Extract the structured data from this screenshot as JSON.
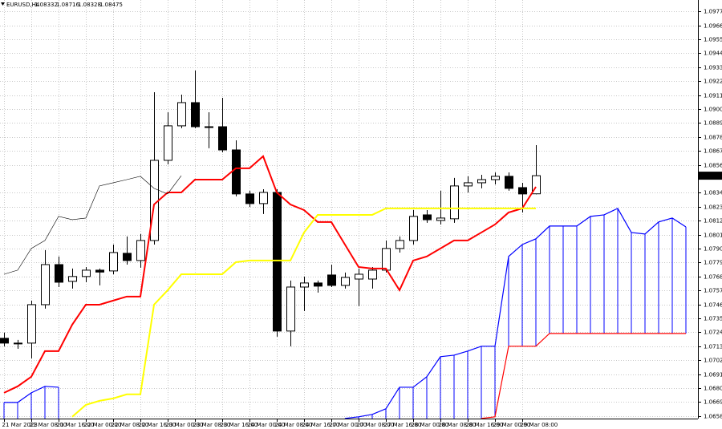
{
  "chart_data": {
    "type": "candlestick",
    "title": "EURUSD,H4",
    "categories": [
      "21 Mar 2023",
      null,
      "21 Mar 08:00",
      null,
      "21 Mar 16:00",
      null,
      "22 Mar 00:00",
      null,
      "22 Mar 08:00",
      null,
      "22 Mar 16:00",
      null,
      "23 Mar 00:00",
      null,
      "23 Mar 08:00",
      null,
      "23 Mar 16:00",
      null,
      "24 Mar 00:00",
      null,
      "24 Mar 08:00",
      null,
      "24 Mar 16:00",
      null,
      "27 Mar 00:00",
      null,
      "27 Mar 08:00",
      null,
      "27 Mar 16:00",
      null,
      "28 Mar 00:00",
      null,
      "28 Mar 08:00",
      null,
      "28 Mar 16:00",
      null,
      "29 Mar 00:00",
      null,
      "29 Mar 08:00",
      null,
      null,
      null,
      null,
      null,
      null,
      null,
      null,
      null,
      null,
      null,
      null
    ],
    "open": [
      1.07193,
      1.07155,
      1.07155,
      1.07458,
      1.07774,
      1.07642,
      1.0768,
      1.0773,
      1.07724,
      1.07863,
      1.07806,
      1.07964,
      1.08596,
      1.08868,
      1.09051,
      1.08861,
      1.08861,
      1.08678,
      1.08331,
      1.08255,
      1.08343,
      1.0725,
      1.07597,
      1.07629,
      1.07692,
      1.0761,
      1.0766,
      1.0766,
      1.0773,
      1.07901,
      1.07964,
      1.08166,
      1.08122,
      1.08135,
      1.08394,
      1.08419,
      1.08444,
      1.0847,
      1.08381,
      1.08332,
      null,
      null,
      null,
      null,
      null,
      null,
      null,
      null,
      null,
      null,
      null
    ],
    "high": [
      1.07237,
      1.0718,
      1.0749,
      1.07888,
      1.07838,
      1.07743,
      1.07755,
      1.07743,
      1.07932,
      1.07996,
      1.08015,
      1.09133,
      1.08975,
      1.09114,
      1.09304,
      1.08975,
      1.09089,
      1.08754,
      1.08356,
      1.08368,
      1.08368,
      1.07648,
      1.0768,
      1.07648,
      1.07774,
      1.07711,
      1.07743,
      1.07755,
      1.07964,
      1.07996,
      1.08204,
      1.08204,
      1.08356,
      1.08457,
      1.0847,
      1.08482,
      1.08501,
      1.08501,
      1.08419,
      1.08716,
      null,
      null,
      null,
      null,
      null,
      null,
      null,
      null,
      null,
      null,
      null
    ],
    "low": [
      1.0713,
      1.0711,
      1.07035,
      1.07427,
      1.07597,
      1.07585,
      1.07635,
      1.0761,
      1.07698,
      1.07774,
      1.07749,
      1.07932,
      1.08564,
      1.08849,
      1.08849,
      1.08691,
      1.08659,
      1.08312,
      1.08229,
      1.08173,
      1.07206,
      1.0713,
      1.07408,
      1.07553,
      1.07597,
      1.07585,
      1.07446,
      1.07585,
      1.07711,
      1.07869,
      1.07932,
      1.08103,
      1.0809,
      1.08103,
      1.08343,
      1.08375,
      1.08406,
      1.08356,
      1.08185,
      1.08328,
      null,
      null,
      null,
      null,
      null,
      null,
      null,
      null,
      null,
      null,
      null
    ],
    "close": [
      1.07155,
      1.0715,
      1.07458,
      1.07774,
      1.07635,
      1.0768,
      1.0773,
      1.07715,
      1.07869,
      1.07806,
      1.07964,
      1.08596,
      1.08868,
      1.09051,
      1.08861,
      1.08855,
      1.08678,
      1.08331,
      1.08255,
      1.08343,
      1.0725,
      1.07597,
      1.07629,
      1.07604,
      1.0761,
      1.07673,
      1.07698,
      1.0773,
      1.07901,
      1.07964,
      1.08154,
      1.08128,
      1.08141,
      1.08394,
      1.08419,
      1.08444,
      1.0847,
      1.08375,
      1.08331,
      1.08475,
      null,
      null,
      null,
      null,
      null,
      null,
      null,
      null,
      null,
      null,
      null
    ],
    "bull_color": "#ffffff",
    "bear_color": "#000000",
    "lines": [
      {
        "color": "#ff0000",
        "width": 2,
        "values": [
          1.06763,
          1.06814,
          1.0689,
          1.07092,
          1.07092,
          1.073,
          1.07458,
          1.07458,
          1.0749,
          1.07522,
          1.07522,
          1.08248,
          1.08343,
          1.08343,
          1.08444,
          1.08444,
          1.08444,
          1.08533,
          1.08533,
          1.08628,
          1.08343,
          1.08248,
          1.08204,
          1.0811,
          1.0811,
          1.07932,
          1.07755,
          1.07743,
          1.07743,
          1.07572,
          1.07806,
          1.07838,
          1.07901,
          1.07964,
          1.07964,
          1.08027,
          1.0809,
          1.08185,
          1.08217,
          1.08387,
          null,
          null,
          null,
          null,
          null,
          null,
          null,
          null,
          null,
          null,
          null
        ]
      },
      {
        "color": "#ffff00",
        "width": 2,
        "values": [
          null,
          null,
          null,
          null,
          null,
          1.06574,
          1.06668,
          1.067,
          1.06719,
          1.06751,
          1.06751,
          1.07458,
          1.07572,
          1.07698,
          1.07698,
          1.07698,
          1.07698,
          1.07793,
          1.07806,
          1.07806,
          1.07806,
          1.07806,
          1.08027,
          1.08166,
          1.08166,
          1.08166,
          1.08166,
          1.08166,
          1.08217,
          1.08217,
          1.08217,
          1.08217,
          1.08217,
          1.08217,
          1.08217,
          1.08217,
          1.08217,
          1.08217,
          1.08217,
          1.08217,
          null,
          null,
          null,
          null,
          null,
          null,
          null,
          null,
          null,
          null,
          null
        ]
      },
      {
        "color": "#000000",
        "width": 0.6,
        "values": [
          1.07698,
          1.0773,
          1.07901,
          1.07964,
          1.08154,
          1.08128,
          1.08141,
          1.08394,
          1.08419,
          1.08444,
          1.0847,
          1.08375,
          1.08331,
          1.08475,
          null,
          null,
          null,
          null,
          null,
          null,
          null,
          null,
          null,
          null,
          null,
          null,
          null,
          null,
          null,
          null,
          null,
          null,
          null,
          null,
          null,
          null,
          null,
          null,
          null,
          null,
          null,
          null,
          null,
          null,
          null,
          null,
          null,
          null,
          null,
          null,
          null
        ]
      }
    ],
    "cloud": {
      "hatch_color": "#0000ff",
      "a": {
        "color": "#ff0000",
        "values": [
          null,
          null,
          null,
          null,
          null,
          null,
          null,
          null,
          null,
          null,
          null,
          null,
          null,
          null,
          null,
          null,
          null,
          null,
          null,
          null,
          null,
          null,
          null,
          null,
          null,
          null,
          null,
          null,
          null,
          null,
          null,
          null,
          null,
          null,
          null,
          1.06561,
          1.06574,
          1.0713,
          1.0713,
          1.0713,
          1.07231,
          1.07231,
          1.07231,
          1.07231,
          1.07231,
          1.07231,
          1.07231,
          1.07231,
          1.07231,
          1.07231,
          1.07231
        ]
      },
      "b": {
        "color": "#0000ff",
        "values": [
          1.06687,
          1.06687,
          1.06763,
          1.06814,
          1.06807,
          null,
          null,
          null,
          null,
          null,
          null,
          null,
          null,
          null,
          null,
          null,
          null,
          null,
          null,
          null,
          null,
          null,
          null,
          null,
          null,
          1.06561,
          1.06574,
          1.06593,
          1.06637,
          1.06807,
          1.06807,
          1.0689,
          1.07048,
          1.0706,
          1.07092,
          1.0713,
          1.0713,
          1.07838,
          1.07932,
          1.07977,
          1.08078,
          1.08078,
          1.08078,
          1.08154,
          1.08166,
          1.08217,
          1.08027,
          1.08015,
          1.0811,
          1.08141,
          1.08071
        ]
      }
    },
    "ylim": [
      1.0656,
      1.0986
    ],
    "yticks": [
      {
        "value": 1.0977,
        "label": "1.09770"
      },
      {
        "value": 1.0966,
        "label": "1.09660"
      },
      {
        "value": 1.0955,
        "label": "1.09550"
      },
      {
        "value": 1.0944,
        "label": "1.09440"
      },
      {
        "value": 1.0933,
        "label": "1.09330"
      },
      {
        "value": 1.0922,
        "label": "1.09220"
      },
      {
        "value": 1.0911,
        "label": "1.09110"
      },
      {
        "value": 1.09,
        "label": "1.09000"
      },
      {
        "value": 1.0889,
        "label": "1.08890"
      },
      {
        "value": 1.0878,
        "label": "1.08780"
      },
      {
        "value": 1.0867,
        "label": "1.08670"
      },
      {
        "value": 1.0856,
        "label": "1.08560"
      },
      {
        "value": 1.0834,
        "label": "1.08340"
      },
      {
        "value": 1.0823,
        "label": "1.08230"
      },
      {
        "value": 1.0812,
        "label": "1.08120"
      },
      {
        "value": 1.0801,
        "label": "1.08010"
      },
      {
        "value": 1.079,
        "label": "1.07900"
      },
      {
        "value": 1.0779,
        "label": "1.07790"
      },
      {
        "value": 1.0768,
        "label": "1.07680"
      },
      {
        "value": 1.0757,
        "label": "1.07570"
      },
      {
        "value": 1.0746,
        "label": "1.07460"
      },
      {
        "value": 1.0735,
        "label": "1.07350"
      },
      {
        "value": 1.0724,
        "label": "1.07240"
      },
      {
        "value": 1.0713,
        "label": "1.07130"
      },
      {
        "value": 1.0702,
        "label": "1.07020"
      },
      {
        "value": 1.0691,
        "label": "1.06910"
      },
      {
        "value": 1.068,
        "label": "1.06800"
      },
      {
        "value": 1.0669,
        "label": "1.06690"
      },
      {
        "value": 1.0658,
        "label": "1.06580"
      }
    ],
    "grid": true
  }
}
